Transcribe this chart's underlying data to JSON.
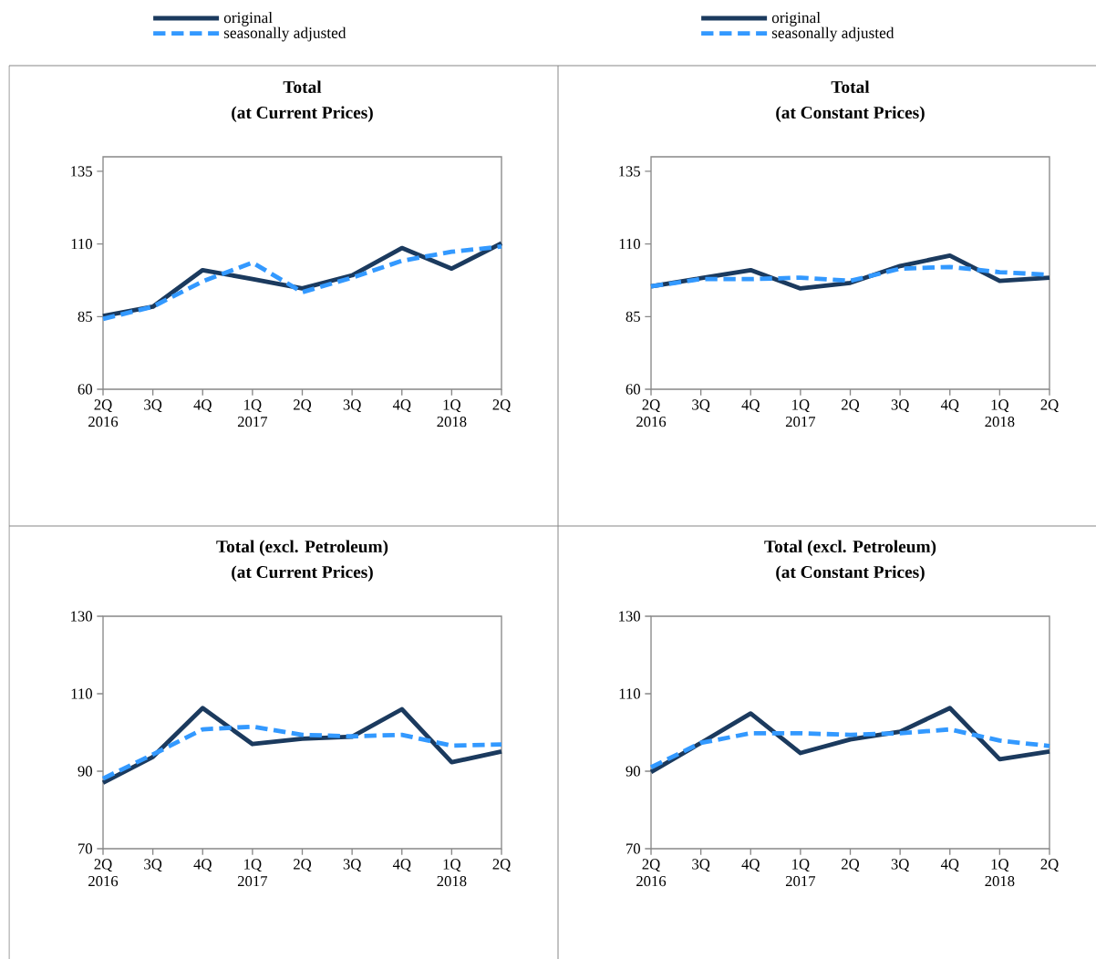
{
  "chart_data": [
    {
      "type": "line",
      "title": "Total",
      "subtitle": "(at Current Prices)",
      "categories": [
        "2Q 2016",
        "3Q",
        "4Q",
        "1Q 2017",
        "2Q",
        "3Q",
        "4Q",
        "1Q 2018",
        "2Q"
      ],
      "ylim": [
        60,
        140
      ],
      "yticks": [
        60,
        85,
        110,
        135
      ],
      "legend": "top",
      "series": [
        {
          "name": "original",
          "color": "#1b3a5e",
          "line_style": "solid",
          "values": [
            85.2,
            88.4,
            101,
            97.9,
            94.7,
            99.2,
            108.6,
            101.5,
            110.2
          ]
        },
        {
          "name": "seasonally adjusted",
          "color": "#3399ff",
          "line_style": "dashed",
          "values": [
            84.2,
            88.4,
            97.1,
            103.6,
            93.4,
            98.4,
            104.2,
            107.3,
            109.1
          ]
        }
      ]
    },
    {
      "type": "line",
      "title": "Total",
      "subtitle": "(at Constant Prices)",
      "categories": [
        "2Q 2016",
        "3Q",
        "4Q",
        "1Q 2017",
        "2Q",
        "3Q",
        "4Q",
        "1Q 2018",
        "2Q"
      ],
      "ylim": [
        60,
        140
      ],
      "yticks": [
        60,
        85,
        110,
        135
      ],
      "legend": "top",
      "series": [
        {
          "name": "original",
          "color": "#1b3a5e",
          "line_style": "solid",
          "values": [
            95.4,
            98.2,
            101,
            94.7,
            96.6,
            102.4,
            106,
            97.3,
            98.4
          ]
        },
        {
          "name": "seasonally adjusted",
          "color": "#3399ff",
          "line_style": "dashed",
          "values": [
            95.4,
            97.9,
            97.9,
            98.4,
            97.3,
            101.5,
            102.1,
            100.3,
            99.4
          ]
        }
      ]
    },
    {
      "type": "line",
      "title": "Total  (excl. Petroleum)",
      "subtitle": "(at Current Prices)",
      "categories": [
        "2Q 2016",
        "3Q",
        "4Q",
        "1Q 2017",
        "2Q",
        "3Q",
        "4Q",
        "1Q 2018",
        "2Q"
      ],
      "ylim": [
        70,
        130
      ],
      "yticks": [
        70,
        90,
        110,
        130
      ],
      "series": [
        {
          "color": "#1b3a5e",
          "line_style": "solid",
          "values": [
            87.0,
            93.7,
            106.3,
            97.0,
            98.4,
            98.9,
            106.0,
            92.3,
            95.1
          ]
        },
        {
          "color": "#3399ff",
          "line_style": "dashed",
          "values": [
            88.1,
            94.3,
            100.8,
            101.5,
            99.4,
            99.0,
            99.4,
            96.6,
            96.9
          ]
        }
      ]
    },
    {
      "type": "line",
      "title": "Total (excl. Petroleum)",
      "subtitle": "(at Constant Prices)",
      "categories": [
        "2Q 2016",
        "3Q",
        "4Q",
        "1Q 2017",
        "2Q",
        "3Q",
        "4Q",
        "1Q 2018",
        "2Q"
      ],
      "ylim": [
        70,
        130
      ],
      "yticks": [
        70,
        90,
        110,
        130
      ],
      "series": [
        {
          "color": "#1b3a5e",
          "line_style": "solid",
          "values": [
            89.8,
            97.3,
            104.9,
            94.7,
            98.2,
            100.2,
            106.3,
            93.1,
            95.1
          ]
        },
        {
          "color": "#3399ff",
          "line_style": "dashed",
          "values": [
            91.0,
            97.3,
            99.8,
            99.8,
            99.4,
            99.8,
            100.8,
            97.9,
            96.5
          ]
        }
      ]
    }
  ]
}
